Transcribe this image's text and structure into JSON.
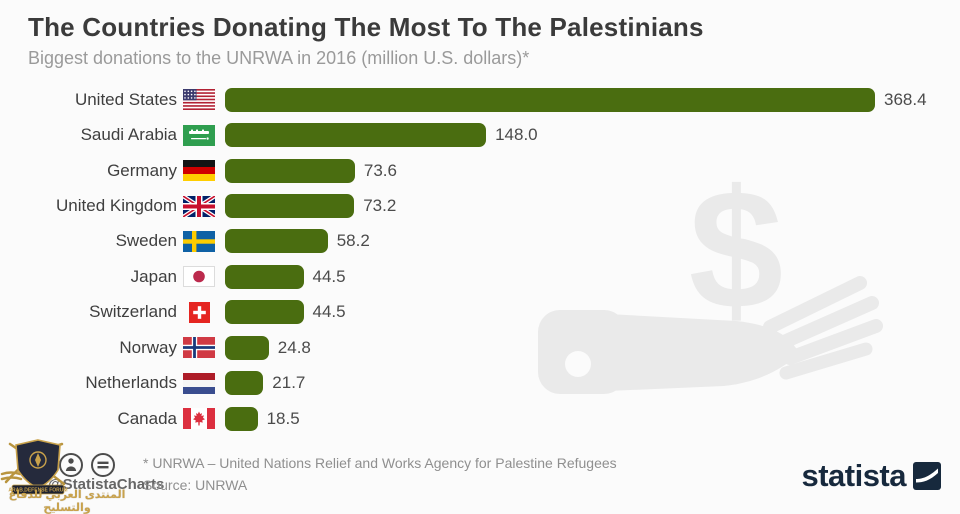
{
  "header": {
    "title": "The Countries Donating The Most To The Palestinians",
    "subtitle": "Biggest donations to the UNRWA in 2016 (million U.S. dollars)*"
  },
  "chart_data": {
    "type": "bar",
    "orientation": "horizontal",
    "title": "The Countries Donating The Most To The Palestinians",
    "subtitle": "Biggest donations to the UNRWA in 2016 (million U.S. dollars)*",
    "unit": "million U.S. dollars",
    "categories": [
      "United States",
      "Saudi Arabia",
      "Germany",
      "United Kingdom",
      "Sweden",
      "Japan",
      "Switzerland",
      "Norway",
      "Netherlands",
      "Canada"
    ],
    "values": [
      368.4,
      148.0,
      73.6,
      73.2,
      58.2,
      44.5,
      44.5,
      24.8,
      21.7,
      18.5
    ],
    "flags": [
      "us",
      "sa",
      "de",
      "gb",
      "se",
      "jp",
      "ch",
      "no",
      "nl",
      "ca"
    ],
    "value_label_decimals": 1,
    "bar_color": "#4a6d10",
    "xlim": [
      0,
      380
    ],
    "grid": false,
    "legend": false
  },
  "watermark": {
    "icon": "hand-with-dollar",
    "dollar_symbol": "$",
    "color": "#eaeaea"
  },
  "footer": {
    "license_icons": [
      "cc-icon",
      "by-icon",
      "nd-icon"
    ],
    "attribution": "@StatistaCharts",
    "footnote": "* UNRWA – United Nations Relief and Works Agency for Palestine Refugees",
    "source": "Source: UNRWA",
    "brand": "statista"
  },
  "overlay_watermark": {
    "banner_text": "ARAB DEFENSE FORUM",
    "arabic_text": "المنتدى العربي للدفاع والتسليح"
  },
  "colors": {
    "background": "#fbfbfb",
    "bar": "#4a6d10",
    "brand_navy": "#17293d",
    "watermark_gold": "#c9a24b"
  }
}
